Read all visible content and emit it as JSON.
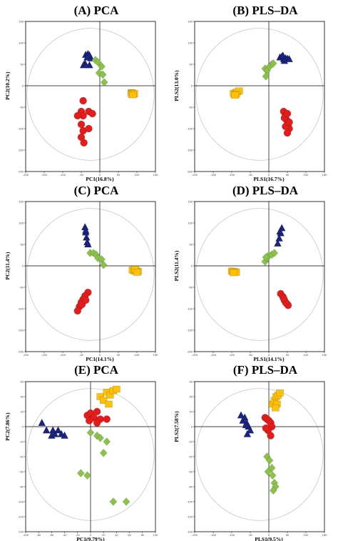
{
  "colors": {
    "group1": "#1a237e",
    "group2": "#8bc34a",
    "group3": "#ffc107",
    "group4": "#e51c1c",
    "ellipse": "#c8c8c8",
    "frame": "#000000"
  },
  "chart_data": [
    {
      "type": "scatter",
      "title": "(A) PCA",
      "xlabel": "PC1(16.8%)",
      "ylabel": "PC2(10.2%)",
      "xlim": [
        -200,
        150
      ],
      "ylim": [
        -200,
        150
      ],
      "xticks": [
        "-200",
        "-150",
        "-100",
        "-50",
        "0",
        "50",
        "100",
        "150"
      ],
      "yticks": [
        "150",
        "100",
        "50",
        "0",
        "-50",
        "-100",
        "-150",
        "-200"
      ],
      "series": [
        {
          "marker": "triangle",
          "color": "#1a237e",
          "points": [
            [
              -38,
              72
            ],
            [
              -32,
              74
            ],
            [
              -28,
              71
            ],
            [
              -34,
              66
            ],
            [
              -24,
              64
            ],
            [
              -40,
              52
            ],
            [
              -28,
              48
            ],
            [
              -44,
              48
            ]
          ]
        },
        {
          "marker": "diamond",
          "color": "#8bc34a",
          "points": [
            [
              -12,
              60
            ],
            [
              -5,
              55
            ],
            [
              5,
              45
            ],
            [
              -2,
              30
            ],
            [
              8,
              26
            ],
            [
              12,
              8
            ]
          ]
        },
        {
          "marker": "square",
          "color": "#ffc107",
          "points": [
            [
              85,
              -16
            ],
            [
              88,
              -17
            ],
            [
              91,
              -19
            ],
            [
              86,
              -20
            ],
            [
              93,
              -18
            ],
            [
              89,
              -21
            ]
          ]
        },
        {
          "marker": "circle",
          "color": "#e51c1c",
          "points": [
            [
              -45,
              -35
            ],
            [
              -50,
              -60
            ],
            [
              -30,
              -60
            ],
            [
              -45,
              -70
            ],
            [
              -20,
              -65
            ],
            [
              -50,
              -90
            ],
            [
              -45,
              -105
            ],
            [
              -30,
              -100
            ],
            [
              -50,
              -120
            ],
            [
              -43,
              -133
            ],
            [
              -60,
              -70
            ]
          ]
        }
      ]
    },
    {
      "type": "scatter",
      "title": "(B) PLS–DA",
      "xlabel": "PLS1(16.7%)",
      "ylabel": "PLS2(13.0%)",
      "xlim": [
        -200,
        150
      ],
      "ylim": [
        -200,
        150
      ],
      "xticks": [
        "-200",
        "-150",
        "-100",
        "-50",
        "0",
        "50",
        "100",
        "150"
      ],
      "yticks": [
        "150",
        "100",
        "50",
        "0",
        "-50",
        "-100",
        "-150",
        "-200"
      ],
      "series": [
        {
          "marker": "triangle",
          "color": "#1a237e",
          "points": [
            [
              30,
              66
            ],
            [
              35,
              68
            ],
            [
              40,
              62
            ],
            [
              45,
              64
            ],
            [
              50,
              63
            ],
            [
              55,
              62
            ],
            [
              38,
              70
            ],
            [
              42,
              58
            ]
          ]
        },
        {
          "marker": "diamond",
          "color": "#8bc34a",
          "points": [
            [
              -10,
              40
            ],
            [
              -5,
              35
            ],
            [
              2,
              45
            ],
            [
              8,
              50
            ],
            [
              12,
              52
            ],
            [
              -8,
              22
            ]
          ]
        },
        {
          "marker": "square",
          "color": "#ffc107",
          "points": [
            [
              -95,
              -18
            ],
            [
              -90,
              -16
            ],
            [
              -85,
              -14
            ],
            [
              -80,
              -12
            ],
            [
              -88,
              -20
            ],
            [
              -92,
              -22
            ]
          ]
        },
        {
          "marker": "circle",
          "color": "#e51c1c",
          "points": [
            [
              40,
              -60
            ],
            [
              45,
              -70
            ],
            [
              48,
              -80
            ],
            [
              52,
              -90
            ],
            [
              55,
              -100
            ],
            [
              45,
              -95
            ],
            [
              50,
              -110
            ],
            [
              55,
              -85
            ],
            [
              42,
              -75
            ],
            [
              50,
              -65
            ]
          ]
        }
      ]
    },
    {
      "type": "scatter",
      "title": "(C) PCA",
      "xlabel": "PC1(14.1%)",
      "ylabel": "PC2(11.4%)",
      "xlim": [
        -200,
        150
      ],
      "ylim": [
        -200,
        150
      ],
      "xticks": [
        "-200",
        "-150",
        "-100",
        "-50",
        "0",
        "50",
        "100",
        "150"
      ],
      "yticks": [
        "150",
        "100",
        "50",
        "0",
        "-50",
        "-100",
        "-150",
        "-200"
      ],
      "series": [
        {
          "marker": "triangle",
          "color": "#1a237e",
          "points": [
            [
              -40,
              90
            ],
            [
              -38,
              78
            ],
            [
              -36,
              66
            ],
            [
              -34,
              55
            ],
            [
              -38,
              82
            ],
            [
              -32,
              50
            ]
          ]
        },
        {
          "marker": "diamond",
          "color": "#8bc34a",
          "points": [
            [
              -26,
              30
            ],
            [
              -17,
              30
            ],
            [
              -10,
              26
            ],
            [
              -5,
              18
            ],
            [
              5,
              15
            ],
            [
              10,
              2
            ]
          ]
        },
        {
          "marker": "square",
          "color": "#ffc107",
          "points": [
            [
              88,
              -10
            ],
            [
              93,
              -12
            ],
            [
              98,
              -11
            ],
            [
              103,
              -13
            ],
            [
              95,
              -8
            ],
            [
              100,
              -15
            ]
          ]
        },
        {
          "marker": "circle",
          "color": "#e51c1c",
          "points": [
            [
              -32,
              -62
            ],
            [
              -40,
              -70
            ],
            [
              -45,
              -78
            ],
            [
              -50,
              -85
            ],
            [
              -55,
              -95
            ],
            [
              -60,
              -105
            ],
            [
              -48,
              -90
            ],
            [
              -38,
              -80
            ]
          ]
        }
      ]
    },
    {
      "type": "scatter",
      "title": "(D) PLS–DA",
      "xlabel": "PLS1(14.1%)",
      "ylabel": "PLS2(11.4%)",
      "xlim": [
        -200,
        150
      ],
      "ylim": [
        -200,
        150
      ],
      "xticks": [
        "-200",
        "-150",
        "-100",
        "-50",
        "0",
        "50",
        "100",
        "150"
      ],
      "yticks": [
        "150",
        "100",
        "50",
        "0",
        "-50",
        "-100",
        "-150",
        "-200"
      ],
      "series": [
        {
          "marker": "triangle",
          "color": "#1a237e",
          "points": [
            [
              35,
              88
            ],
            [
              32,
              76
            ],
            [
              28,
              64
            ],
            [
              24,
              52
            ],
            [
              30,
              80
            ]
          ]
        },
        {
          "marker": "diamond",
          "color": "#8bc34a",
          "points": [
            [
              -10,
              10
            ],
            [
              -5,
              18
            ],
            [
              0,
              25
            ],
            [
              8,
              26
            ],
            [
              15,
              30
            ],
            [
              -8,
              20
            ]
          ]
        },
        {
          "marker": "square",
          "color": "#ffc107",
          "points": [
            [
              -100,
              -12
            ],
            [
              -96,
              -14
            ],
            [
              -92,
              -13
            ],
            [
              -88,
              -15
            ],
            [
              -95,
              -16
            ]
          ]
        },
        {
          "marker": "circle",
          "color": "#e51c1c",
          "points": [
            [
              32,
              -65
            ],
            [
              38,
              -72
            ],
            [
              42,
              -80
            ],
            [
              48,
              -88
            ],
            [
              52,
              -92
            ],
            [
              45,
              -85
            ],
            [
              40,
              -76
            ]
          ]
        }
      ]
    },
    {
      "type": "scatter",
      "title": "(E) PCA",
      "xlabel": "PC1(9.79%)",
      "ylabel": "PC2(7.86%)",
      "xlim": [
        -100,
        100
      ],
      "ylim": [
        -140,
        60
      ],
      "xticks": [
        "-100",
        "-80",
        "-60",
        "-40",
        "-20",
        "0",
        "20",
        "40",
        "60",
        "80",
        "100"
      ],
      "yticks": [
        "60",
        "40",
        "20",
        "0",
        "-20",
        "-40",
        "-60",
        "-80",
        "-100",
        "-120",
        "-140"
      ],
      "series": [
        {
          "marker": "triangle",
          "color": "#1a237e",
          "points": [
            [
              -75,
              5
            ],
            [
              -68,
              -5
            ],
            [
              -60,
              -12
            ],
            [
              -55,
              -10
            ],
            [
              -50,
              -5
            ],
            [
              -45,
              -10
            ],
            [
              -40,
              -12
            ],
            [
              -58,
              -5
            ]
          ]
        },
        {
          "marker": "diamond",
          "color": "#8bc34a",
          "points": [
            [
              0,
              -8
            ],
            [
              10,
              -12
            ],
            [
              15,
              -15
            ],
            [
              25,
              -20
            ],
            [
              20,
              -35
            ],
            [
              -5,
              -65
            ],
            [
              -15,
              -62
            ],
            [
              35,
              -100
            ],
            [
              55,
              -100
            ]
          ]
        },
        {
          "marker": "square",
          "color": "#ffc107",
          "points": [
            [
              15,
              40
            ],
            [
              25,
              46
            ],
            [
              30,
              42
            ],
            [
              35,
              48
            ],
            [
              40,
              50
            ],
            [
              20,
              35
            ],
            [
              28,
              30
            ]
          ]
        },
        {
          "marker": "circle",
          "color": "#e51c1c",
          "points": [
            [
              -5,
              15
            ],
            [
              0,
              18
            ],
            [
              5,
              12
            ],
            [
              10,
              20
            ],
            [
              -2,
              8
            ],
            [
              15,
              10
            ],
            [
              10,
              5
            ],
            [
              25,
              10
            ]
          ]
        }
      ]
    },
    {
      "type": "scatter",
      "title": "(F) PLS–DA",
      "xlabel": "PLS1(9.5%)",
      "ylabel": "PLS2(7.58%)",
      "xlim": [
        -200,
        150
      ],
      "ylim": [
        -140,
        60
      ],
      "xticks": [
        "-200",
        "-150",
        "-100",
        "-50",
        "0",
        "50",
        "100",
        "150"
      ],
      "yticks": [
        "60",
        "40",
        "20",
        "0",
        "-20",
        "-40",
        "-60",
        "-80",
        "-100",
        "-120",
        "-140"
      ],
      "series": [
        {
          "marker": "triangle",
          "color": "#1a237e",
          "points": [
            [
              -75,
              15
            ],
            [
              -70,
              8
            ],
            [
              -65,
              12
            ],
            [
              -60,
              5
            ],
            [
              -55,
              0
            ],
            [
              -50,
              -5
            ],
            [
              -58,
              -10
            ],
            [
              -62,
              2
            ]
          ]
        },
        {
          "marker": "diamond",
          "color": "#8bc34a",
          "points": [
            [
              -5,
              -40
            ],
            [
              2,
              -45
            ],
            [
              8,
              -55
            ],
            [
              -2,
              -60
            ],
            [
              10,
              -65
            ],
            [
              15,
              -75
            ],
            [
              18,
              -80
            ],
            [
              12,
              -85
            ]
          ]
        },
        {
          "marker": "square",
          "color": "#ffc107",
          "points": [
            [
              10,
              30
            ],
            [
              15,
              35
            ],
            [
              20,
              40
            ],
            [
              25,
              42
            ],
            [
              30,
              45
            ],
            [
              22,
              30
            ],
            [
              18,
              25
            ]
          ]
        },
        {
          "marker": "circle",
          "color": "#e51c1c",
          "points": [
            [
              -10,
              12
            ],
            [
              -5,
              10
            ],
            [
              0,
              8
            ],
            [
              5,
              5
            ],
            [
              8,
              0
            ],
            [
              -2,
              -5
            ],
            [
              5,
              -12
            ],
            [
              -8,
              -2
            ]
          ]
        }
      ]
    }
  ]
}
